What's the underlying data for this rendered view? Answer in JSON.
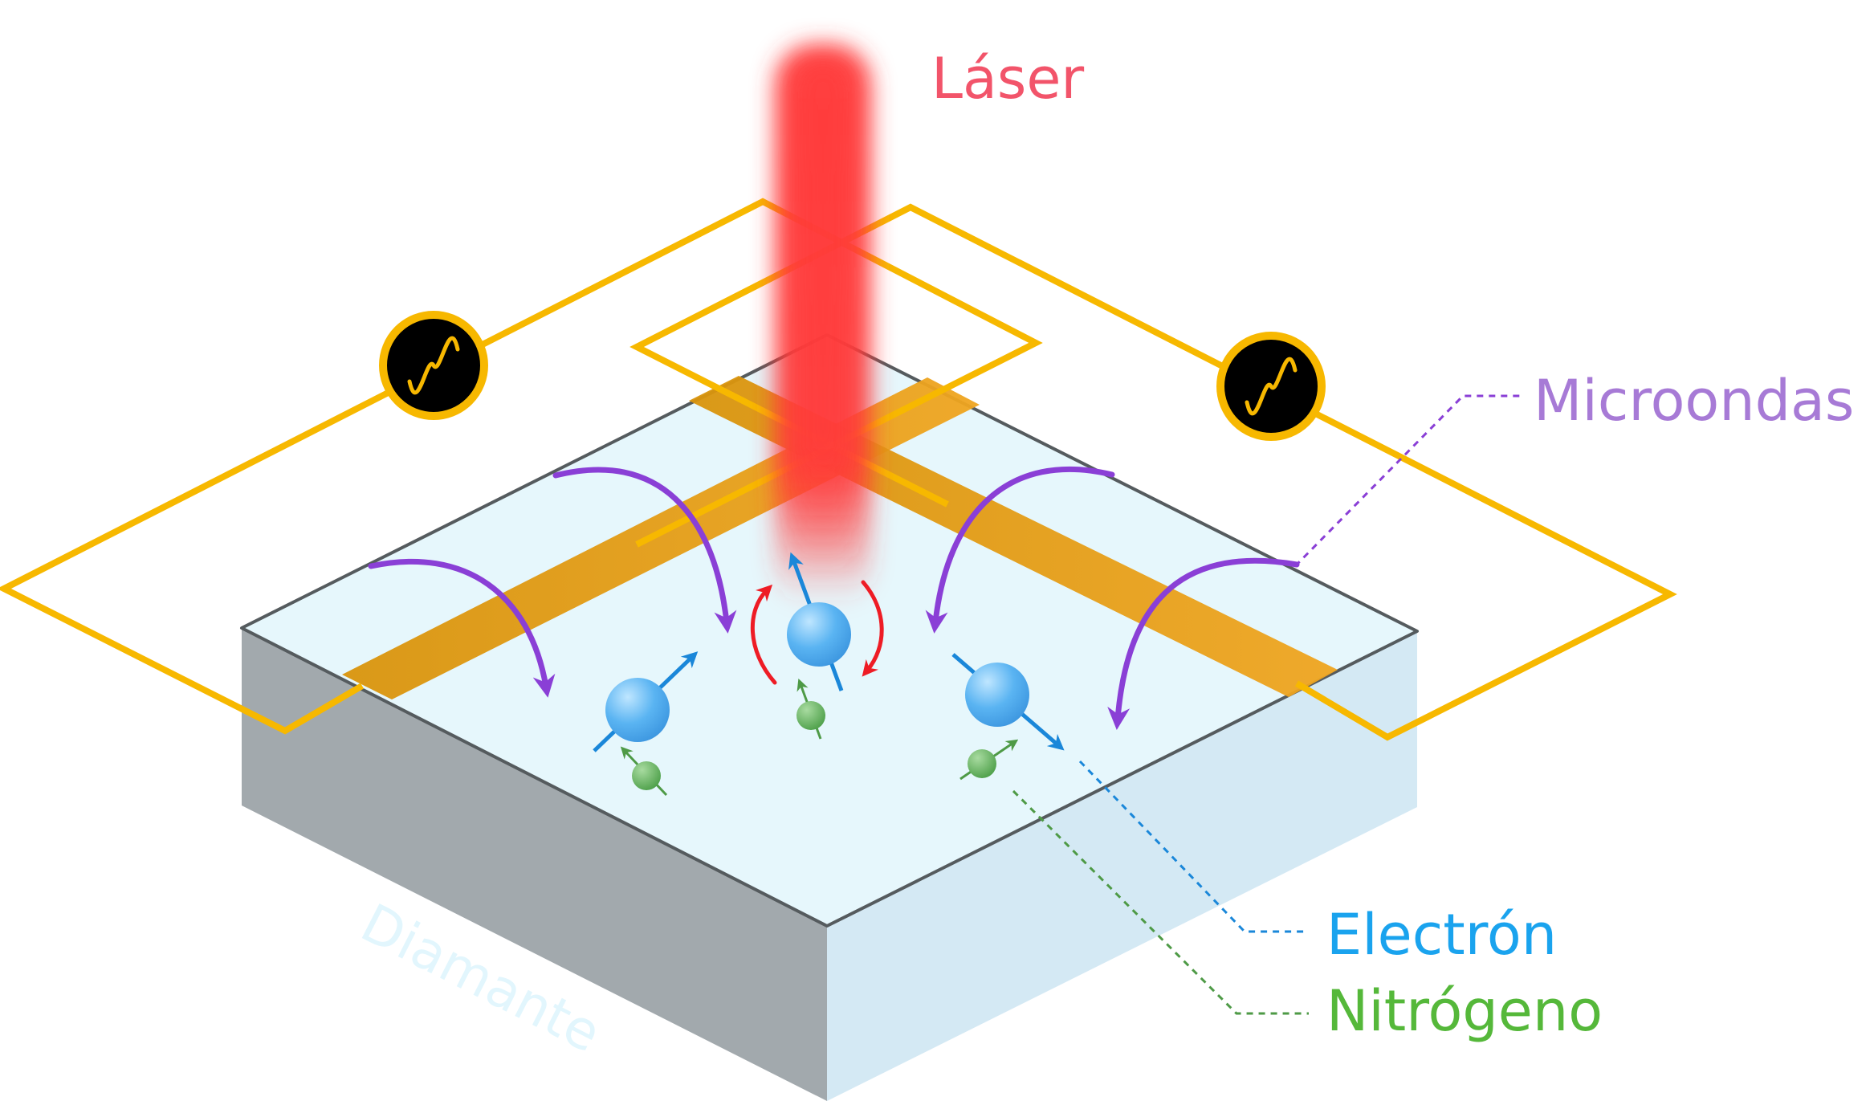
{
  "labels": {
    "laser": "Láser",
    "microwaves": "Microondas",
    "electron": "Electrón",
    "nitrogen": "Nitrógeno",
    "diamond": "Diamante"
  },
  "colors": {
    "laser": "#f2546a",
    "microwaves": "#a77ad6",
    "electron": "#1aa3ee",
    "nitrogen": "#55b83a",
    "diamond_label": "#e2f6fd",
    "wire": "#f7b800",
    "strip": "#e09a10",
    "field_arrow": "#8a3fd6",
    "spin_arrow": "#1a87d9",
    "precession_arrow": "#ee1c25"
  },
  "icons": {
    "left_source": "ac-source-icon",
    "right_source": "ac-source-icon"
  }
}
